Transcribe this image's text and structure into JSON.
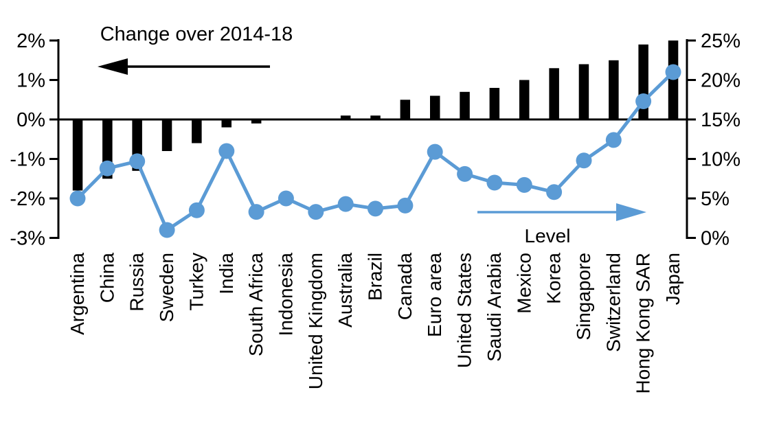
{
  "chart_data": {
    "type": "bar+line",
    "title": "",
    "categories": [
      "Argentina",
      "China",
      "Russia",
      "Sweden",
      "Turkey",
      "India",
      "South Africa",
      "Indonesia",
      "United Kingdom",
      "Australia",
      "Brazil",
      "Canada",
      "Euro area",
      "United States",
      "Saudi Arabia",
      "Mexico",
      "Korea",
      "Singapore",
      "Switzerland",
      "Hong Kong SAR",
      "Japan"
    ],
    "series": [
      {
        "name": "Change over 2014-18",
        "type": "bar",
        "axis": "left",
        "color": "#000000",
        "arrow_direction": "left",
        "values": [
          -1.8,
          -1.5,
          -1.3,
          -0.8,
          -0.6,
          -0.2,
          -0.1,
          0,
          0,
          0.1,
          0.1,
          0.5,
          0.6,
          0.7,
          0.8,
          1.0,
          1.3,
          1.4,
          1.5,
          1.9,
          2.0
        ]
      },
      {
        "name": "Level",
        "type": "line",
        "axis": "right",
        "color": "#5b9bd5",
        "arrow_direction": "right",
        "values": [
          5.0,
          8.8,
          9.7,
          1.0,
          3.5,
          11.0,
          3.3,
          5.0,
          3.3,
          4.3,
          3.7,
          4.1,
          10.9,
          8.1,
          7.0,
          6.7,
          5.8,
          9.8,
          12.4,
          17.3,
          21.0
        ]
      }
    ],
    "left_axis": {
      "unit": "%",
      "range": [
        -3,
        2
      ],
      "tick_values": [
        2,
        1,
        0,
        -1,
        -2,
        -3
      ],
      "tick_labels": [
        "2%",
        "1%",
        "0%",
        "-1%",
        "-2%",
        "-3%"
      ]
    },
    "right_axis": {
      "unit": "%",
      "range": [
        0,
        25
      ],
      "tick_values": [
        25,
        20,
        15,
        10,
        5,
        0
      ],
      "tick_labels": [
        "25%",
        "20%",
        "15%",
        "10%",
        "5%",
        "0%"
      ]
    },
    "grid": "off",
    "legend_position": "in-plot annotations with arrows",
    "background": "#ffffff"
  }
}
